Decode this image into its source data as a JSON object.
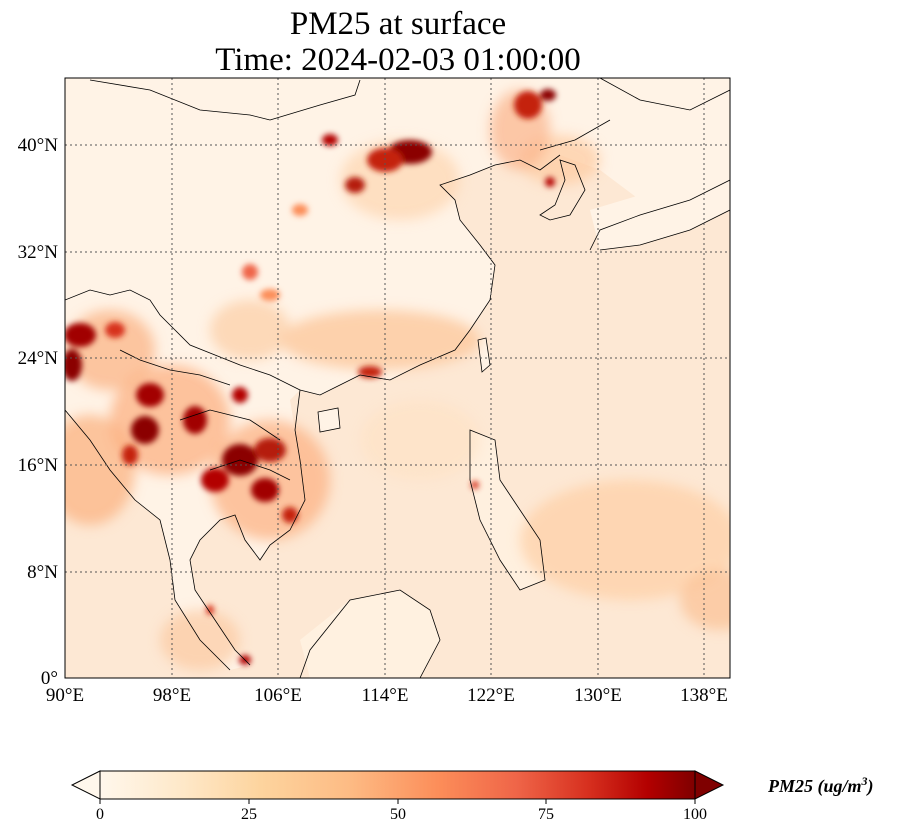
{
  "title_line1": "PM25 at surface",
  "title_line2": "Time: 2024-02-03 01:00:00",
  "map": {
    "lon_range": [
      90,
      140
    ],
    "lat_range": [
      0,
      45
    ],
    "lon_ticks": [
      "90°E",
      "98°E",
      "106°E",
      "114°E",
      "122°E",
      "130°E",
      "138°E"
    ],
    "lat_ticks": [
      "0°",
      "8°N",
      "16°N",
      "24°N",
      "32°N",
      "40°N"
    ],
    "gridlines": true,
    "ocean_color": "#fde9d6",
    "land_color": "#fff3e6"
  },
  "colorbar": {
    "label": "PM25 (ug/m",
    "label_sup": "3",
    "label_end": ")",
    "range": [
      0,
      100
    ],
    "tick_labels": [
      "0",
      "25",
      "50",
      "75",
      "100"
    ],
    "extend": "both",
    "colormap": "OrRd",
    "colors": [
      "#fff7ec",
      "#fee8c8",
      "#fdd49e",
      "#fdbb84",
      "#fc8d59",
      "#ef6548",
      "#d7301f",
      "#b30000",
      "#7f0000"
    ]
  }
}
